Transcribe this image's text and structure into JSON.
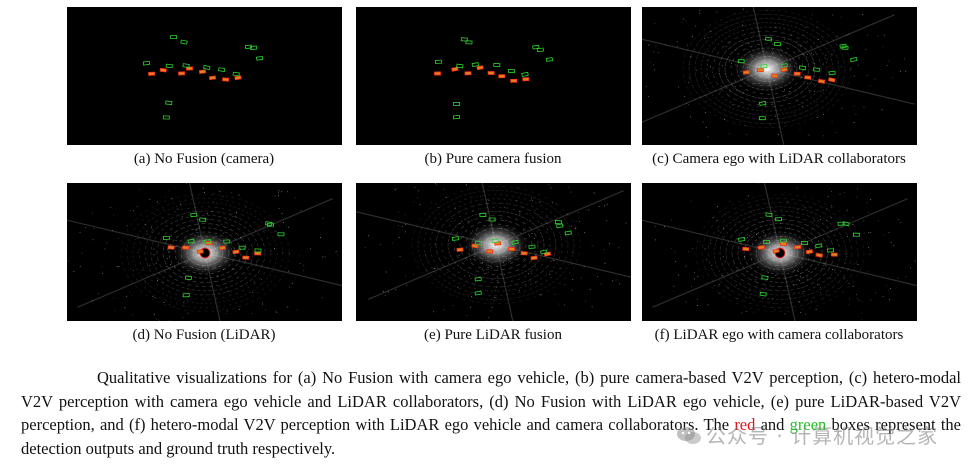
{
  "figure": {
    "panels": [
      {
        "id": "a",
        "label": "(a) No Fusion (camera)",
        "mode": "camera"
      },
      {
        "id": "b",
        "label": "(b) Pure camera fusion",
        "mode": "camera"
      },
      {
        "id": "c",
        "label": "(c) Camera ego with LiDAR collaborators",
        "mode": "lidar"
      },
      {
        "id": "d",
        "label": "(d) No Fusion (LiDAR)",
        "mode": "lidar"
      },
      {
        "id": "e",
        "label": "(e) Pure LiDAR fusion",
        "mode": "lidar"
      },
      {
        "id": "f",
        "label": "(f) LiDAR ego with camera collaborators",
        "mode": "lidar"
      }
    ],
    "colors": {
      "prediction": "#ff2a1a",
      "ground_truth": "#2bd62b",
      "prediction_fill": "#d7861a"
    }
  },
  "caption": {
    "lead": "Qualitative visualizations for (a) No Fusion with camera ego vehicle, (b) pure camera-based V2V perception, (c) hetero-modal V2V perception with camera ego vehicle and LiDAR collaborators, (d) No Fusion with LiDAR ego vehicle, (e) pure LiDAR-based V2V perception, and (f) hetero-modal V2V perception with LiDAR ego vehicle and camera collaborators. The ",
    "red_word": "red",
    "mid": " and ",
    "green_word": "green",
    "tail": " boxes represent the detection outputs and ground truth respectively."
  },
  "watermark": {
    "text": "公众号 · 计算机视觉之家",
    "icon": "wechat-logo-icon"
  }
}
